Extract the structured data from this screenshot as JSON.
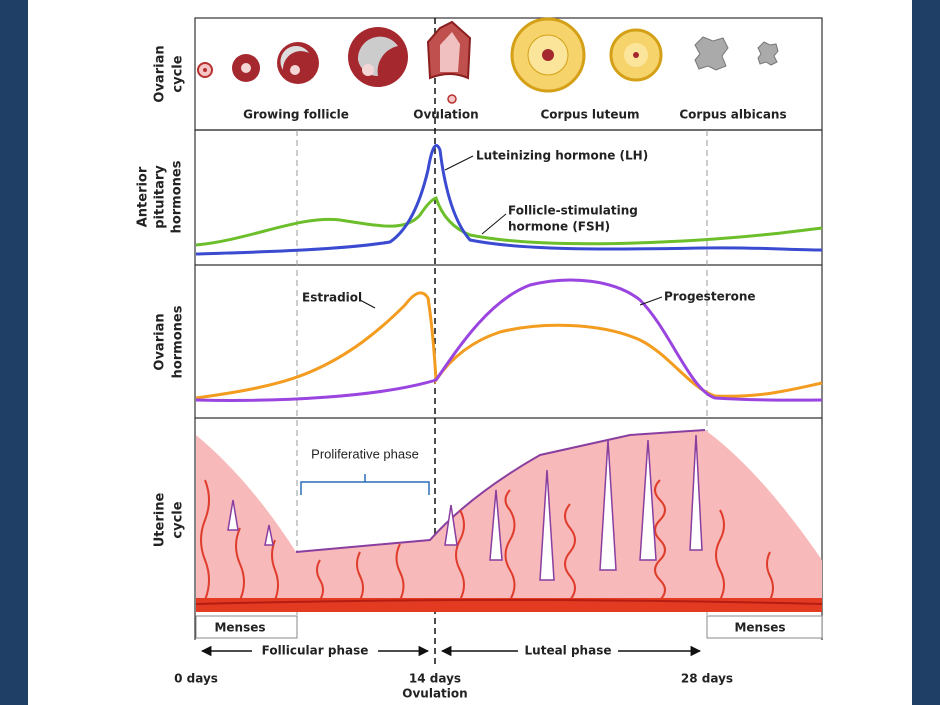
{
  "rows": [
    {
      "label_lines": [
        "Ovarian",
        "cycle"
      ]
    },
    {
      "label_lines": [
        "Anterior",
        "pituitary",
        "hormones"
      ]
    },
    {
      "label_lines": [
        "Ovarian",
        "hormones"
      ]
    },
    {
      "label_lines": [
        "Uterine",
        "cycle"
      ]
    }
  ],
  "ovarian_stages": [
    "Growing follicle",
    "Ovulation",
    "Corpus luteum",
    "Corpus albicans"
  ],
  "pituitary_labels": {
    "lh": "Luteinizing hormone (LH)",
    "fsh_lines": [
      "Follicle-stimulating",
      "hormone (FSH)"
    ]
  },
  "ovarian_hormone_labels": {
    "estradiol": "Estradiol",
    "progesterone": "Progesterone"
  },
  "uterine_labels": {
    "proliferative": "Proliferative phase"
  },
  "timeline": {
    "menses": [
      "Menses",
      "Menses"
    ],
    "phases": [
      "Follicular phase",
      "Luteal phase"
    ],
    "days": [
      "0 days",
      "14 days",
      "28 days"
    ],
    "ovulation": "Ovulation"
  }
}
